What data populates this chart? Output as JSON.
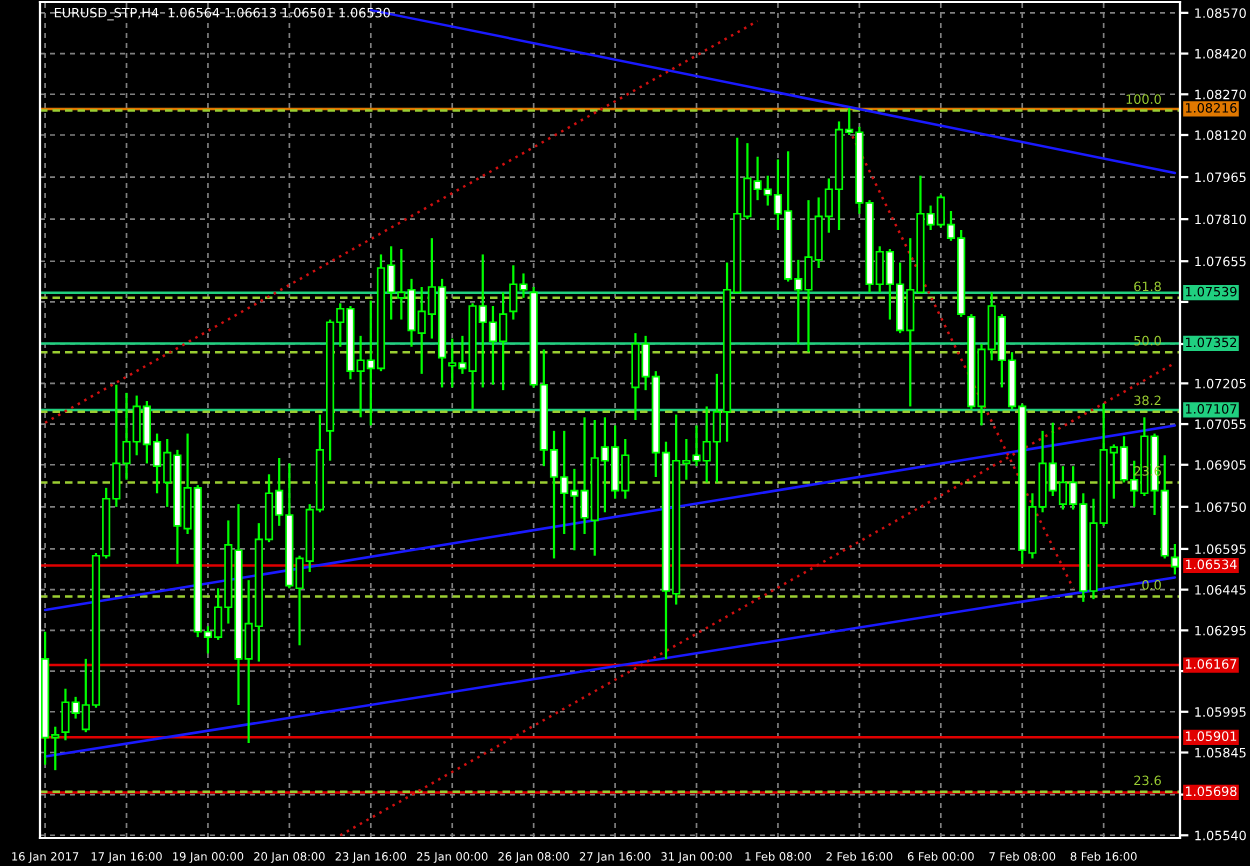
{
  "chart_data": {
    "type": "candlestick",
    "title": "EURUSD_STP,H4  1.06564 1.06613 1.06501 1.06530",
    "categories": [
      "16 Jan 2017",
      null,
      null,
      null,
      null,
      null,
      null,
      null,
      "17 Jan 16:00",
      null,
      null,
      null,
      null,
      null,
      null,
      null,
      "19 Jan 00:00",
      null,
      null,
      null,
      null,
      null,
      null,
      null,
      "20 Jan 08:00",
      null,
      null,
      null,
      null,
      null,
      null,
      null,
      "23 Jan 16:00",
      null,
      null,
      null,
      null,
      null,
      null,
      null,
      "25 Jan 00:00",
      null,
      null,
      null,
      null,
      null,
      null,
      null,
      "26 Jan 08:00",
      null,
      null,
      null,
      null,
      null,
      null,
      null,
      "27 Jan 16:00",
      null,
      null,
      null,
      null,
      null,
      null,
      null,
      "31 Jan 00:00",
      null,
      null,
      null,
      null,
      null,
      null,
      null,
      "1 Feb 08:00",
      null,
      null,
      null,
      null,
      null,
      null,
      null,
      "2 Feb 16:00",
      null,
      null,
      null,
      null,
      null,
      null,
      null,
      "6 Feb 00:00",
      null,
      null,
      null,
      null,
      null,
      null,
      null,
      "7 Feb 08:00",
      null,
      null,
      null,
      null,
      null,
      null,
      null,
      "8 Feb 16:00",
      null,
      null,
      null,
      null,
      null,
      null,
      null
    ],
    "ohlc": [
      [
        1.0619,
        1.0629,
        1.058,
        1.059
      ],
      [
        1.059,
        1.0594,
        1.0578,
        1.0591
      ],
      [
        1.0592,
        1.0608,
        1.0589,
        1.0603
      ],
      [
        1.0603,
        1.0605,
        1.0597,
        1.0599
      ],
      [
        1.0593,
        1.0619,
        1.0592,
        1.0602
      ],
      [
        1.0602,
        1.0658,
        1.0601,
        1.0657
      ],
      [
        1.0657,
        1.0682,
        1.0656,
        1.0678
      ],
      [
        1.0678,
        1.072,
        1.0675,
        1.0691
      ],
      [
        1.0691,
        1.0717,
        1.0685,
        1.0699
      ],
      [
        1.0699,
        1.0716,
        1.0694,
        1.0712
      ],
      [
        1.0712,
        1.0714,
        1.0691,
        1.0698
      ],
      [
        1.0699,
        1.0702,
        1.068,
        1.069
      ],
      [
        1.0684,
        1.07,
        1.0675,
        1.0695
      ],
      [
        1.0694,
        1.0696,
        1.0654,
        1.0668
      ],
      [
        1.0667,
        1.0702,
        1.0665,
        1.0682
      ],
      [
        1.0682,
        1.0683,
        1.0627,
        1.0629
      ],
      [
        1.0629,
        1.0631,
        1.0621,
        1.0627
      ],
      [
        1.0627,
        1.0645,
        1.0626,
        1.0638
      ],
      [
        1.0638,
        1.067,
        1.0632,
        1.0661
      ],
      [
        1.0659,
        1.0676,
        1.0602,
        1.0619
      ],
      [
        1.0619,
        1.0648,
        1.0588,
        1.0632
      ],
      [
        1.0631,
        1.0669,
        1.0618,
        1.0663
      ],
      [
        1.0663,
        1.0687,
        1.0662,
        1.068
      ],
      [
        1.0681,
        1.0693,
        1.0668,
        1.0672
      ],
      [
        1.0672,
        1.0691,
        1.0645,
        1.0646
      ],
      [
        1.0645,
        1.0657,
        1.0624,
        1.0656
      ],
      [
        1.0655,
        1.0676,
        1.0651,
        1.0674
      ],
      [
        1.0674,
        1.0709,
        1.0673,
        1.0696
      ],
      [
        1.0703,
        1.0744,
        1.0692,
        1.0743
      ],
      [
        1.0743,
        1.075,
        1.0734,
        1.0748
      ],
      [
        1.0748,
        1.0749,
        1.0722,
        1.0725
      ],
      [
        1.0725,
        1.0738,
        1.0708,
        1.0729
      ],
      [
        1.0729,
        1.0751,
        1.0705,
        1.0726
      ],
      [
        1.0726,
        1.0768,
        1.0725,
        1.0763
      ],
      [
        1.0764,
        1.0771,
        1.0744,
        1.0754
      ],
      [
        1.0752,
        1.077,
        1.0744,
        1.0754
      ],
      [
        1.0755,
        1.0759,
        1.0734,
        1.074
      ],
      [
        1.0739,
        1.0756,
        1.0724,
        1.0747
      ],
      [
        1.0746,
        1.0774,
        1.0737,
        1.0756
      ],
      [
        1.0756,
        1.0759,
        1.0719,
        1.073
      ],
      [
        1.0727,
        1.0737,
        1.0719,
        1.0728
      ],
      [
        1.0728,
        1.0738,
        1.0724,
        1.0726
      ],
      [
        1.0725,
        1.075,
        1.0711,
        1.0749
      ],
      [
        1.0749,
        1.0768,
        1.0719,
        1.0743
      ],
      [
        1.0743,
        1.0749,
        1.072,
        1.0736
      ],
      [
        1.0736,
        1.0754,
        1.0718,
        1.0746
      ],
      [
        1.0747,
        1.0764,
        1.0744,
        1.0757
      ],
      [
        1.0757,
        1.0761,
        1.0752,
        1.0755
      ],
      [
        1.0754,
        1.0756,
        1.0719,
        1.072
      ],
      [
        1.072,
        1.0733,
        1.069,
        1.0696
      ],
      [
        1.0696,
        1.0703,
        1.0656,
        1.0686
      ],
      [
        1.0686,
        1.0703,
        1.0665,
        1.068
      ],
      [
        1.0681,
        1.0689,
        1.0659,
        1.0679
      ],
      [
        1.0681,
        1.0708,
        1.0665,
        1.0671
      ],
      [
        1.067,
        1.0707,
        1.0657,
        1.0693
      ],
      [
        1.0697,
        1.0708,
        1.0673,
        1.0692
      ],
      [
        1.0697,
        1.0705,
        1.0678,
        1.0681
      ],
      [
        1.0681,
        1.07,
        1.0678,
        1.0694
      ],
      [
        1.0719,
        1.0739,
        1.0707,
        1.0735
      ],
      [
        1.0735,
        1.0738,
        1.0718,
        1.0723
      ],
      [
        1.0723,
        1.0725,
        1.0686,
        1.0695
      ],
      [
        1.0695,
        1.0699,
        1.0619,
        1.0644
      ],
      [
        1.0643,
        1.0709,
        1.0639,
        1.0692
      ],
      [
        1.0691,
        1.07,
        1.0685,
        1.0692
      ],
      [
        1.0694,
        1.0705,
        1.069,
        1.0692
      ],
      [
        1.0692,
        1.0712,
        1.0684,
        1.0699
      ],
      [
        1.0699,
        1.0724,
        1.0684,
        1.071
      ],
      [
        1.071,
        1.0765,
        1.0699,
        1.0755
      ],
      [
        1.0754,
        1.0811,
        1.0754,
        1.0783
      ],
      [
        1.0782,
        1.0809,
        1.0781,
        1.0796
      ],
      [
        1.0795,
        1.0804,
        1.0788,
        1.0792
      ],
      [
        1.0792,
        1.0797,
        1.0786,
        1.079
      ],
      [
        1.079,
        1.0803,
        1.0777,
        1.0783
      ],
      [
        1.0784,
        1.0806,
        1.0758,
        1.0759
      ],
      [
        1.0759,
        1.0766,
        1.0735,
        1.0755
      ],
      [
        1.0755,
        1.0788,
        1.0732,
        1.0767
      ],
      [
        1.0766,
        1.0789,
        1.0763,
        1.0782
      ],
      [
        1.0782,
        1.0796,
        1.0776,
        1.0792
      ],
      [
        1.0792,
        1.0817,
        1.0777,
        1.0814
      ],
      [
        1.0814,
        1.0822,
        1.0812,
        1.0813
      ],
      [
        1.0813,
        1.0815,
        1.0783,
        1.0787
      ],
      [
        1.0787,
        1.0788,
        1.0754,
        1.0757
      ],
      [
        1.0757,
        1.0771,
        1.0754,
        1.0769
      ],
      [
        1.0769,
        1.077,
        1.0744,
        1.0757
      ],
      [
        1.0757,
        1.0765,
        1.0739,
        1.074
      ],
      [
        1.074,
        1.0774,
        1.0712,
        1.0755
      ],
      [
        1.0754,
        1.0797,
        1.0754,
        1.0783
      ],
      [
        1.0783,
        1.0786,
        1.0777,
        1.0779
      ],
      [
        1.0779,
        1.079,
        1.0778,
        1.0789
      ],
      [
        1.0779,
        1.0784,
        1.0773,
        1.0774
      ],
      [
        1.0774,
        1.0777,
        1.0745,
        1.0746
      ],
      [
        1.0745,
        1.0746,
        1.0711,
        1.0712
      ],
      [
        1.0712,
        1.0735,
        1.0705,
        1.0733
      ],
      [
        1.0733,
        1.0754,
        1.0729,
        1.0749
      ],
      [
        1.0745,
        1.0746,
        1.0719,
        1.0729
      ],
      [
        1.0729,
        1.0732,
        1.0711,
        1.0712
      ],
      [
        1.0712,
        1.0713,
        1.0654,
        1.0659
      ],
      [
        1.0658,
        1.068,
        1.0656,
        1.0675
      ],
      [
        1.0675,
        1.0703,
        1.0673,
        1.0691
      ],
      [
        1.0691,
        1.0706,
        1.0679,
        1.0681
      ],
      [
        1.0676,
        1.069,
        1.0674,
        1.0684
      ],
      [
        1.0684,
        1.069,
        1.0674,
        1.0676
      ],
      [
        1.0676,
        1.068,
        1.064,
        1.0644
      ],
      [
        1.0644,
        1.0678,
        1.0641,
        1.0669
      ],
      [
        1.0669,
        1.0713,
        1.0668,
        1.0696
      ],
      [
        1.0695,
        1.0698,
        1.0678,
        1.0697
      ],
      [
        1.0697,
        1.0701,
        1.0684,
        1.0685
      ],
      [
        1.0685,
        1.0692,
        1.0675,
        1.0681
      ],
      [
        1.068,
        1.0708,
        1.0679,
        1.0701
      ],
      [
        1.0701,
        1.0702,
        1.0672,
        1.0681
      ],
      [
        1.0681,
        1.0694,
        1.0656,
        1.0657
      ],
      [
        1.06564,
        1.06613,
        1.06501,
        1.0653
      ]
    ],
    "annotations": [
      {
        "text": "100.0",
        "y": 1.0821
      },
      {
        "text": "61.8",
        "y": 1.0752
      },
      {
        "text": "50.0",
        "y": 1.0732
      },
      {
        "text": "38.2",
        "y": 1.071
      },
      {
        "text": "23.6",
        "y": 1.0684
      },
      {
        "text": "0.0",
        "y": 1.0642
      },
      {
        "text": "23.6",
        "y": 1.057
      }
    ],
    "series": [
      {
        "type": "line",
        "color": "#1a1aff",
        "line_style": "solid",
        "values": [
          null,
          null,
          null,
          null,
          null,
          null,
          null,
          null,
          null,
          null,
          null,
          null,
          null,
          null,
          null,
          null,
          null,
          null,
          null,
          null,
          null,
          null,
          null,
          null,
          null,
          null,
          null,
          null,
          null,
          null,
          null,
          null,
          1.0858,
          null,
          null,
          null,
          null,
          null,
          null,
          null,
          null,
          null,
          null,
          null,
          null,
          null,
          null,
          null,
          null,
          null,
          null,
          null,
          null,
          null,
          null,
          null,
          null,
          null,
          null,
          null,
          null,
          null,
          null,
          null,
          null,
          null,
          null,
          null,
          null,
          null,
          null,
          null,
          null,
          null,
          null,
          null,
          null,
          null,
          null,
          null,
          null,
          null,
          null,
          null,
          null,
          null,
          null,
          null,
          null,
          null,
          null,
          null,
          null,
          null,
          null,
          null,
          null,
          null,
          null,
          null,
          null,
          null,
          null,
          null,
          null,
          null,
          null,
          null,
          null,
          null,
          null,
          1.0798
        ]
      },
      {
        "type": "line",
        "color": "#1a1aff",
        "line_style": "solid",
        "values": [
          1.0637,
          null,
          null,
          null,
          null,
          null,
          null,
          null,
          null,
          null,
          null,
          null,
          null,
          null,
          null,
          null,
          null,
          null,
          null,
          null,
          null,
          null,
          null,
          null,
          null,
          null,
          null,
          null,
          null,
          null,
          null,
          null,
          null,
          null,
          null,
          null,
          null,
          null,
          null,
          null,
          null,
          null,
          null,
          null,
          null,
          null,
          null,
          null,
          null,
          null,
          null,
          null,
          null,
          null,
          null,
          null,
          null,
          null,
          null,
          null,
          null,
          null,
          null,
          null,
          null,
          null,
          null,
          null,
          null,
          null,
          null,
          null,
          null,
          null,
          null,
          null,
          null,
          null,
          null,
          null,
          null,
          null,
          null,
          null,
          null,
          null,
          null,
          null,
          null,
          null,
          null,
          null,
          null,
          null,
          null,
          null,
          null,
          null,
          null,
          null,
          null,
          null,
          null,
          null,
          null,
          null,
          null,
          null,
          null,
          null,
          null,
          1.0705
        ]
      },
      {
        "type": "line",
        "color": "#1a1aff",
        "line_style": "solid",
        "values": [
          1.0583,
          null,
          null,
          null,
          null,
          null,
          null,
          null,
          null,
          null,
          null,
          null,
          null,
          null,
          null,
          null,
          null,
          null,
          null,
          null,
          null,
          null,
          null,
          null,
          null,
          null,
          null,
          null,
          null,
          null,
          null,
          null,
          null,
          null,
          null,
          null,
          null,
          null,
          null,
          null,
          null,
          null,
          null,
          null,
          null,
          null,
          null,
          null,
          null,
          null,
          null,
          null,
          null,
          null,
          null,
          null,
          null,
          null,
          null,
          null,
          null,
          null,
          null,
          null,
          null,
          null,
          null,
          null,
          null,
          null,
          null,
          null,
          null,
          null,
          null,
          null,
          null,
          null,
          null,
          null,
          null,
          null,
          null,
          null,
          null,
          null,
          null,
          null,
          null,
          null,
          null,
          null,
          null,
          null,
          null,
          null,
          null,
          null,
          null,
          null,
          null,
          null,
          null,
          null,
          null,
          null,
          null,
          null,
          null,
          null,
          null,
          1.0649
        ]
      },
      {
        "type": "line",
        "color": "#d01010",
        "line_style": "dotted",
        "values": [
          1.0706,
          null,
          null,
          null,
          null,
          null,
          null,
          null,
          null,
          null,
          null,
          null,
          null,
          null,
          null,
          null,
          null,
          null,
          null,
          null,
          null,
          null,
          null,
          null,
          null,
          null,
          null,
          null,
          null,
          null,
          null,
          null,
          null,
          null,
          null,
          null,
          null,
          null,
          null,
          null,
          null,
          null,
          null,
          null,
          null,
          null,
          null,
          null,
          null,
          null,
          null,
          null,
          null,
          null,
          null,
          null,
          null,
          null,
          null,
          null,
          null,
          null,
          null,
          null,
          null,
          null,
          null,
          null,
          null,
          null,
          1.0854,
          null,
          null,
          null,
          null,
          null,
          null,
          null,
          null,
          null,
          null,
          null,
          null,
          null,
          null,
          null,
          null,
          null,
          null,
          null,
          null,
          null,
          null,
          null,
          null,
          null,
          null,
          null,
          null,
          null,
          null,
          null,
          null,
          null,
          null,
          null,
          null,
          null,
          null,
          null,
          null,
          null
        ]
      },
      {
        "type": "line",
        "color": "#d01010",
        "line_style": "dotted",
        "values": [
          null,
          null,
          null,
          null,
          null,
          null,
          null,
          null,
          null,
          null,
          null,
          null,
          null,
          null,
          null,
          null,
          null,
          null,
          null,
          null,
          null,
          null,
          null,
          null,
          null,
          null,
          null,
          null,
          null,
          1.0554,
          null,
          null,
          null,
          null,
          null,
          null,
          null,
          null,
          null,
          null,
          null,
          null,
          null,
          null,
          null,
          null,
          null,
          null,
          null,
          null,
          null,
          null,
          null,
          null,
          null,
          null,
          null,
          null,
          null,
          null,
          null,
          null,
          null,
          null,
          null,
          null,
          null,
          null,
          null,
          null,
          null,
          null,
          null,
          null,
          null,
          null,
          null,
          null,
          null,
          null,
          null,
          null,
          null,
          null,
          null,
          null,
          null,
          null,
          null,
          null,
          null,
          null,
          null,
          null,
          null,
          null,
          null,
          null,
          null,
          null,
          null,
          null,
          null,
          null,
          null,
          null,
          null,
          null,
          null,
          null,
          null,
          1.0728
        ]
      },
      {
        "type": "line",
        "color": "#d01010",
        "line_style": "dotted",
        "values": [
          null,
          null,
          null,
          null,
          null,
          null,
          null,
          null,
          null,
          null,
          null,
          null,
          null,
          null,
          null,
          null,
          null,
          null,
          null,
          null,
          null,
          null,
          null,
          null,
          null,
          null,
          null,
          null,
          null,
          null,
          null,
          null,
          null,
          null,
          null,
          null,
          null,
          null,
          null,
          null,
          null,
          null,
          null,
          null,
          null,
          null,
          null,
          null,
          null,
          null,
          null,
          null,
          null,
          null,
          null,
          null,
          null,
          null,
          null,
          null,
          null,
          null,
          null,
          null,
          null,
          null,
          null,
          null,
          null,
          null,
          null,
          null,
          null,
          null,
          null,
          null,
          null,
          null,
          null,
          1.0814,
          null,
          null,
          null,
          null,
          null,
          null,
          null,
          null,
          null,
          null,
          null,
          null,
          null,
          null,
          null,
          null,
          null,
          null,
          null,
          null,
          null,
          1.0645,
          null,
          null,
          null,
          null,
          null,
          null,
          null,
          null,
          null,
          null
        ]
      }
    ],
    "ref_lines": [
      {
        "axis": "y",
        "value": 1.08216,
        "label": "1.08216",
        "color": "#e07800",
        "line_style": "solid"
      },
      {
        "axis": "y",
        "value": 1.07539,
        "label": "1.07539",
        "color": "#20d080",
        "line_style": "solid"
      },
      {
        "axis": "y",
        "value": 1.07352,
        "label": "1.07352",
        "color": "#20d080",
        "line_style": "solid"
      },
      {
        "axis": "y",
        "value": 1.07107,
        "label": "1.07107",
        "color": "#20d080",
        "line_style": "solid"
      },
      {
        "axis": "y",
        "value": 1.06534,
        "label": "1.06534",
        "color": "#e00000",
        "line_style": "solid"
      },
      {
        "axis": "y",
        "value": 1.06167,
        "label": "1.06167",
        "color": "#e00000",
        "line_style": "solid"
      },
      {
        "axis": "y",
        "value": 1.05901,
        "label": "1.05901",
        "color": "#e00000",
        "line_style": "solid"
      },
      {
        "axis": "y",
        "value": 1.05698,
        "label": "1.05698",
        "color": "#e00000",
        "line_style": "solid"
      },
      {
        "axis": "y",
        "value": 1.0821,
        "color": "#9acd32",
        "line_style": "dashed"
      },
      {
        "axis": "y",
        "value": 1.0752,
        "color": "#9acd32",
        "line_style": "dashed"
      },
      {
        "axis": "y",
        "value": 1.0732,
        "color": "#9acd32",
        "line_style": "dashed"
      },
      {
        "axis": "y",
        "value": 1.071,
        "color": "#9acd32",
        "line_style": "dashed"
      },
      {
        "axis": "y",
        "value": 1.0684,
        "color": "#9acd32",
        "line_style": "dashed"
      },
      {
        "axis": "y",
        "value": 1.0642,
        "color": "#9acd32",
        "line_style": "dashed"
      },
      {
        "axis": "y",
        "value": 1.057,
        "color": "#9acd32",
        "line_style": "dashed"
      }
    ],
    "ylim": [
      1.0553,
      1.0861
    ],
    "yticks": [
      {
        "value": 1.0857,
        "label": "1.08570"
      },
      {
        "value": 1.0842,
        "label": "1.08420"
      },
      {
        "value": 1.0827,
        "label": "1.08270"
      },
      {
        "value": 1.0812,
        "label": "1.08120"
      },
      {
        "value": 1.07965,
        "label": "1.07965"
      },
      {
        "value": 1.0781,
        "label": "1.07810"
      },
      {
        "value": 1.07655,
        "label": "1.07655"
      },
      {
        "value": 1.07505,
        "label": null
      },
      {
        "value": 1.0735,
        "label": null
      },
      {
        "value": 1.07205,
        "label": "1.07205"
      },
      {
        "value": 1.07055,
        "label": "1.07055"
      },
      {
        "value": 1.06905,
        "label": "1.06905"
      },
      {
        "value": 1.0675,
        "label": "1.06750"
      },
      {
        "value": 1.06595,
        "label": "1.06595"
      },
      {
        "value": 1.06445,
        "label": "1.06445"
      },
      {
        "value": 1.06295,
        "label": "1.06295"
      },
      {
        "value": 1.06145,
        "label": null
      },
      {
        "value": 1.05995,
        "label": "1.05995"
      },
      {
        "value": 1.05845,
        "label": "1.05845"
      },
      {
        "value": 1.0569,
        "label": null
      },
      {
        "value": 1.0554,
        "label": "1.05540"
      }
    ],
    "grid": true
  }
}
